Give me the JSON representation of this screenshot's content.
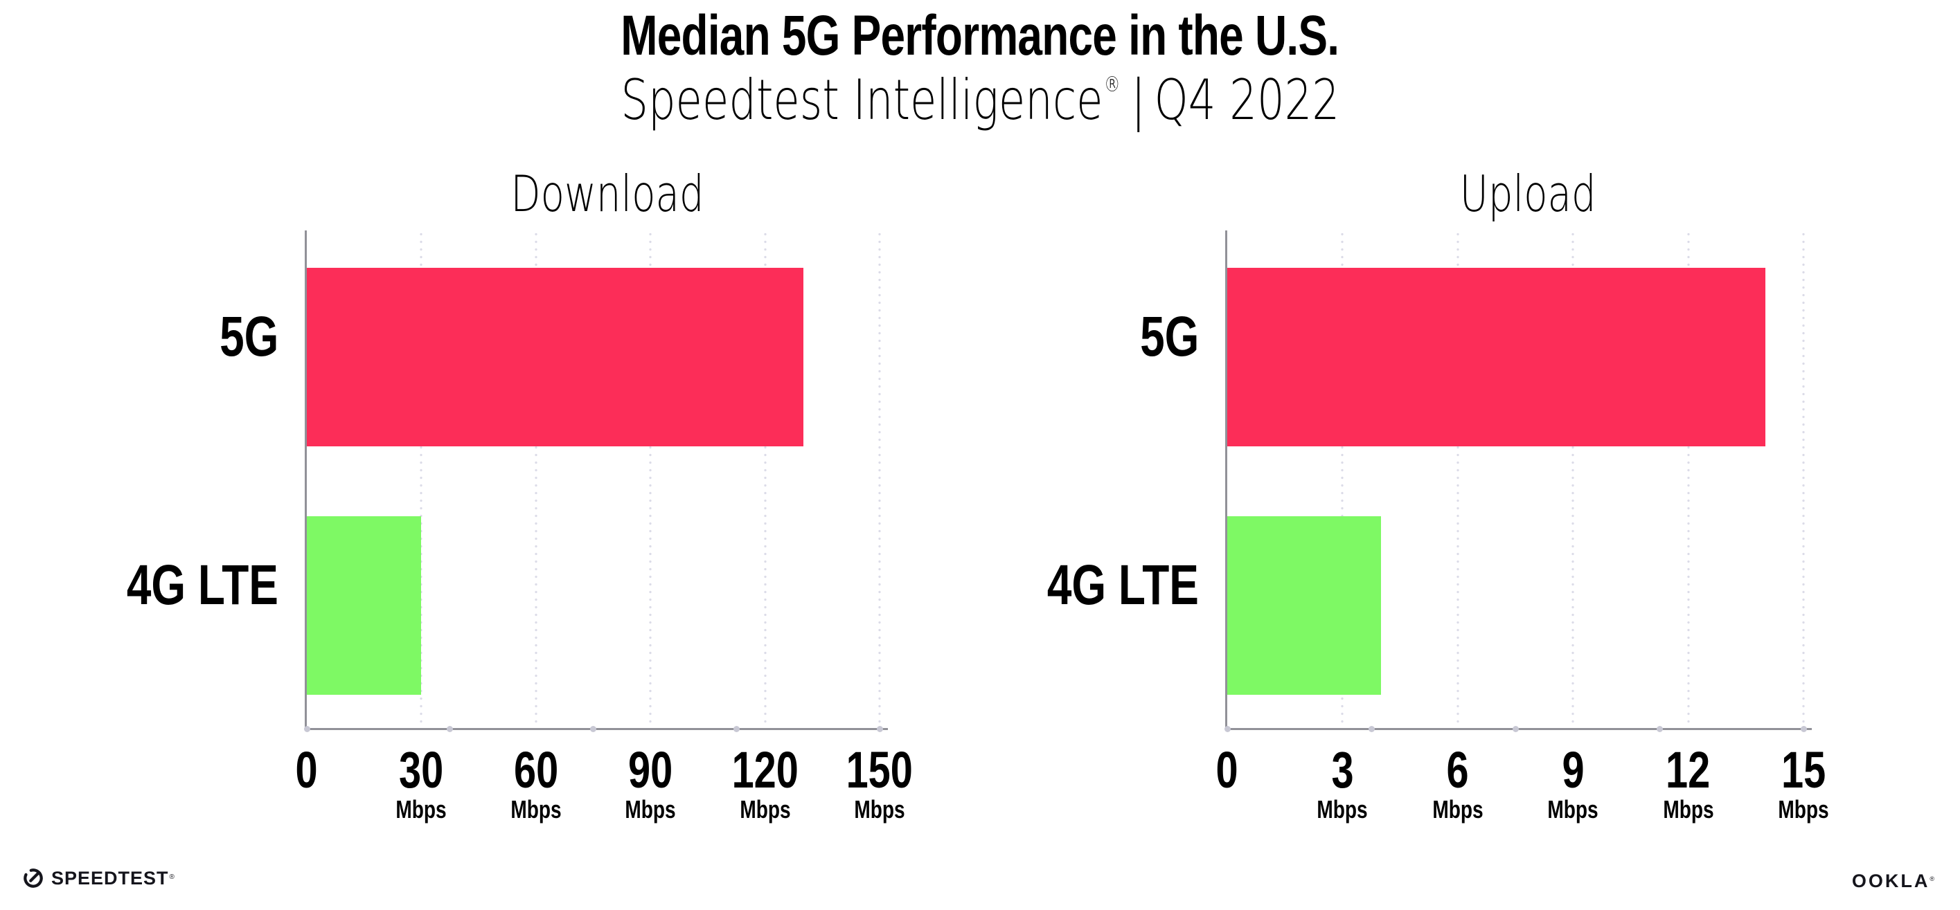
{
  "header": {
    "title": "Median 5G Performance in the U.S.",
    "subtitle": {
      "brand": "Speedtest Intelligence",
      "registered_mark": "®",
      "separator": "|",
      "period": "Q4 2022"
    }
  },
  "chart_data": [
    {
      "type": "bar",
      "orientation": "horizontal",
      "title": "Download",
      "categories": [
        "5G",
        "4G LTE"
      ],
      "values": [
        130,
        30
      ],
      "values_are_estimates_from_bar_lengths": true,
      "unit": "Mbps",
      "xlim": [
        0,
        150
      ],
      "xticks": [
        0,
        30,
        60,
        90,
        120,
        150
      ],
      "bar_colors": [
        "#fc2d58",
        "#7ef964"
      ],
      "grid": "dotted vertical gridlines at each nonzero tick",
      "legend": "none"
    },
    {
      "type": "bar",
      "orientation": "horizontal",
      "title": "Upload",
      "categories": [
        "5G",
        "4G LTE"
      ],
      "values": [
        14,
        4
      ],
      "values_are_estimates_from_bar_lengths": true,
      "unit": "Mbps",
      "xlim": [
        0,
        15
      ],
      "xticks": [
        0,
        3,
        6,
        9,
        12,
        15
      ],
      "bar_colors": [
        "#fc2d58",
        "#7ef964"
      ],
      "grid": "dotted vertical gridlines at each nonzero tick",
      "legend": "none"
    }
  ],
  "footer": {
    "speedtest_wordmark": "SPEEDTEST",
    "speedtest_mark": "®",
    "ookla_wordmark": "OOKLA",
    "ookla_mark": "®"
  },
  "palette": {
    "bar_5g": "#fc2d58",
    "bar_4g_lte": "#7ef964",
    "axis_line": "#919198",
    "grid_dots": "#dcdce8",
    "axis_end_dots": "#c8c8d4",
    "text": "#000000",
    "logo_ink": "#15151c"
  }
}
